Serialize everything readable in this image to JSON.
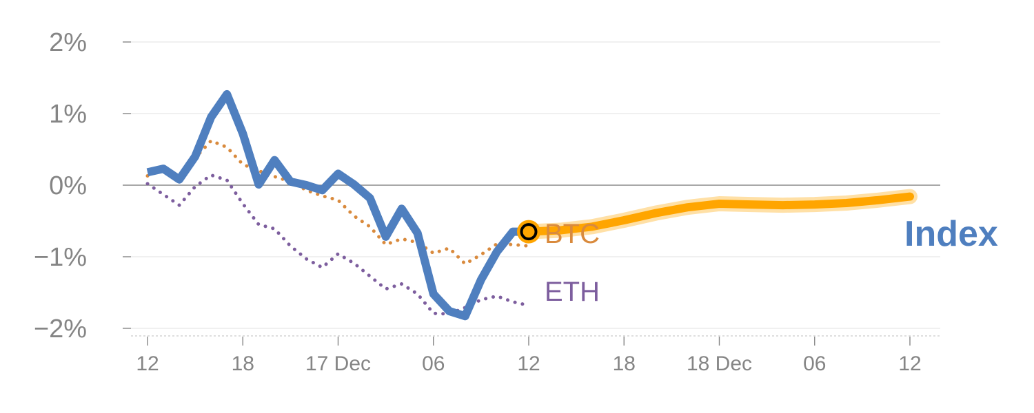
{
  "chart_data": {
    "type": "line",
    "title": "",
    "xlabel": "",
    "ylabel": "",
    "ylim": [
      -2,
      2
    ],
    "xlim": [
      0,
      48
    ],
    "x_unit": "hours",
    "y_ticks": [
      {
        "value": 2,
        "label": "2%"
      },
      {
        "value": 1,
        "label": "1%"
      },
      {
        "value": 0,
        "label": "0%"
      },
      {
        "value": -1,
        "label": "−1%"
      },
      {
        "value": -2,
        "label": "−2%"
      }
    ],
    "x_ticks": [
      {
        "value": 0,
        "label": "12"
      },
      {
        "value": 6,
        "label": "18"
      },
      {
        "value": 12,
        "label": "17 Dec"
      },
      {
        "value": 18,
        "label": "06"
      },
      {
        "value": 24,
        "label": "12"
      },
      {
        "value": 30,
        "label": "18"
      },
      {
        "value": 36,
        "label": "18 Dec"
      },
      {
        "value": 42,
        "label": "06"
      },
      {
        "value": 48,
        "label": "12"
      }
    ],
    "grid": true,
    "series": [
      {
        "name": "Index",
        "style": "solid",
        "color": "#4f7fbf",
        "x": [
          0,
          1,
          2,
          3,
          4,
          5,
          6,
          7,
          8,
          9,
          10,
          11,
          12,
          13,
          14,
          15,
          16,
          17,
          18,
          19,
          20,
          21,
          22,
          23,
          24
        ],
        "values": [
          0.18,
          0.23,
          0.08,
          0.4,
          0.95,
          1.27,
          0.72,
          0.01,
          0.35,
          0.05,
          0.0,
          -0.07,
          0.16,
          0.01,
          -0.18,
          -0.72,
          -0.33,
          -0.67,
          -1.52,
          -1.76,
          -1.83,
          -1.32,
          -0.93,
          -0.65,
          -0.65
        ]
      },
      {
        "name": "BTC",
        "style": "dotted",
        "color": "#d98a3d",
        "x": [
          0,
          1,
          2,
          3,
          4,
          5,
          6,
          7,
          8,
          9,
          10,
          11,
          12,
          13,
          14,
          15,
          16,
          17,
          18,
          19,
          20,
          21,
          22,
          23,
          24
        ],
        "values": [
          0.13,
          0.25,
          0.11,
          0.38,
          0.62,
          0.53,
          0.29,
          0.2,
          0.12,
          0.05,
          -0.07,
          -0.15,
          -0.21,
          -0.43,
          -0.58,
          -0.83,
          -0.75,
          -0.8,
          -0.95,
          -0.88,
          -1.1,
          -0.97,
          -0.82,
          -0.83,
          -0.85
        ]
      },
      {
        "name": "ETH",
        "style": "dotted",
        "color": "#7d5e9e",
        "x": [
          0,
          1,
          2,
          3,
          4,
          5,
          6,
          7,
          8,
          9,
          10,
          11,
          12,
          13,
          14,
          15,
          16,
          17,
          18,
          19,
          20,
          21,
          22,
          23,
          24
        ],
        "values": [
          0.02,
          -0.13,
          -0.28,
          -0.02,
          0.14,
          0.07,
          -0.26,
          -0.55,
          -0.61,
          -0.85,
          -1.03,
          -1.15,
          -0.96,
          -1.09,
          -1.27,
          -1.45,
          -1.38,
          -1.52,
          -1.79,
          -1.8,
          -1.71,
          -1.6,
          -1.55,
          -1.63,
          -1.68
        ]
      },
      {
        "name": "Index forecast",
        "style": "band",
        "color": "#ffa500",
        "x": [
          24,
          26,
          28,
          30,
          32,
          34,
          36,
          38,
          40,
          42,
          44,
          46,
          48
        ],
        "values": [
          -0.65,
          -0.63,
          -0.58,
          -0.49,
          -0.39,
          -0.31,
          -0.26,
          -0.27,
          -0.28,
          -0.27,
          -0.25,
          -0.21,
          -0.16
        ]
      }
    ],
    "current_marker": {
      "x": 24,
      "value": -0.65,
      "color": "#ffa500"
    },
    "labels": {
      "btc": {
        "text": "BTC",
        "color": "#d98a3d"
      },
      "eth": {
        "text": "ETH",
        "color": "#7d5e9e"
      },
      "index": {
        "text": "Index",
        "color": "#4f7fbf"
      }
    },
    "colors": {
      "grid": "#e6e6e6",
      "zero_line": "#8c8c8c",
      "axis_tick": "#858585",
      "tick_label": "#858585"
    }
  }
}
